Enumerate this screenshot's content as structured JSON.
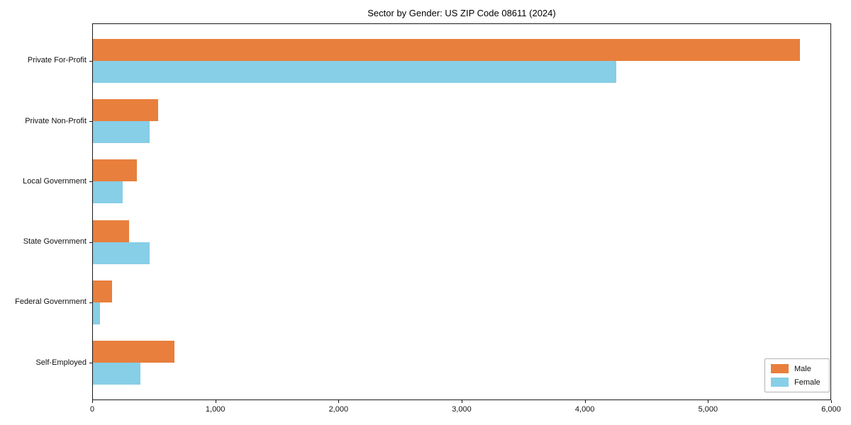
{
  "chart_data": {
    "type": "bar",
    "orientation": "horizontal",
    "title": "Sector by Gender: US ZIP Code 08611 (2024)",
    "categories": [
      "Private For-Profit",
      "Private Non-Profit",
      "Local Government",
      "State Government",
      "Federal Government",
      "Self-Employed"
    ],
    "series": [
      {
        "name": "Male",
        "color": "#e87f3d",
        "values": [
          5740,
          530,
          355,
          295,
          155,
          660
        ]
      },
      {
        "name": "Female",
        "color": "#87cee7",
        "values": [
          4250,
          460,
          240,
          460,
          60,
          385
        ]
      }
    ],
    "xlabel": "",
    "ylabel": "",
    "xlim": [
      0,
      6000
    ],
    "xticks": [
      0,
      1000,
      2000,
      3000,
      4000,
      5000,
      6000
    ],
    "xtick_labels": [
      "0",
      "1,000",
      "2,000",
      "3,000",
      "4,000",
      "5,000",
      "6,000"
    ],
    "grid": false,
    "legend": {
      "position": "lower right",
      "entries": [
        "Male",
        "Female"
      ]
    },
    "colors": {
      "spine": "#1a1a1a",
      "background": "#ffffff",
      "text": "#111111"
    }
  }
}
